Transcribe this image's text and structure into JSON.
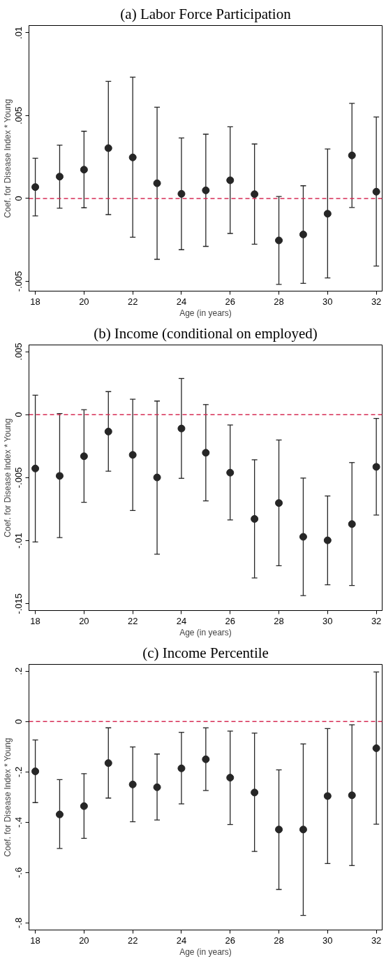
{
  "chart_data": [
    {
      "type": "scatter",
      "title": "(a) Labor Force Participation",
      "xlabel": "Age (in years)",
      "ylabel": "Coef. for Disease Index * Young",
      "color": "#262626",
      "marker": "circle",
      "grid": false,
      "x": [
        18,
        19,
        20,
        21,
        22,
        23,
        24,
        25,
        26,
        27,
        28,
        29,
        30,
        31,
        32
      ],
      "values": [
        0.00069,
        0.00132,
        0.00174,
        0.00304,
        0.00248,
        0.00092,
        0.00028,
        0.00049,
        0.0011,
        0.00026,
        -0.00253,
        -0.00217,
        -0.00092,
        0.0026,
        0.00041
      ],
      "errors": [
        [
          -0.00105,
          0.00243
        ],
        [
          -0.00059,
          0.00322
        ],
        [
          -0.00056,
          0.00406
        ],
        [
          -0.00097,
          0.00707
        ],
        [
          -0.00234,
          0.00732
        ],
        [
          -0.00367,
          0.00551
        ],
        [
          -0.00309,
          0.00365
        ],
        [
          -0.00289,
          0.00388
        ],
        [
          -0.00211,
          0.00433
        ],
        [
          -0.00276,
          0.00329
        ],
        [
          -0.00518,
          0.00012
        ],
        [
          -0.00512,
          0.00077
        ],
        [
          -0.00479,
          0.00299
        ],
        [
          -0.00054,
          0.00574
        ],
        [
          -0.00408,
          0.00492
        ]
      ],
      "xlim": [
        17.74,
        32.24
      ],
      "ylim": [
        -0.00559,
        0.01044
      ],
      "xticks": [
        18,
        20,
        22,
        24,
        26,
        28,
        30,
        32
      ],
      "yticks": [
        {
          "value": -0.005,
          "label": "-.005"
        },
        {
          "value": 0,
          "label": "0"
        },
        {
          "value": 0.005,
          "label": ".005"
        },
        {
          "value": 0.01,
          "label": ".01"
        }
      ],
      "ref_lines": [
        {
          "axis": "y",
          "value": 0,
          "color": "#d62d55",
          "line_style": "dashed"
        }
      ]
    },
    {
      "type": "scatter",
      "title": "(b) Income (conditional on employed)",
      "xlabel": "Age (in years)",
      "ylabel": "Coef. for Disease Index * Young",
      "color": "#262626",
      "marker": "circle",
      "grid": false,
      "x": [
        18,
        19,
        20,
        21,
        22,
        23,
        24,
        25,
        26,
        27,
        28,
        29,
        30,
        31,
        32
      ],
      "values": [
        -0.00427,
        -0.00486,
        -0.0033,
        -0.00134,
        -0.00319,
        -0.00498,
        -0.0011,
        -0.00302,
        -0.0046,
        -0.00827,
        -0.00701,
        -0.00969,
        -0.00997,
        -0.00868,
        -0.00414
      ],
      "errors": [
        [
          -0.0101,
          0.00155
        ],
        [
          -0.00975,
          9e-05
        ],
        [
          -0.00695,
          0.00039
        ],
        [
          -0.00449,
          0.00183
        ],
        [
          -0.0076,
          0.00123
        ],
        [
          -0.01107,
          0.00108
        ],
        [
          -0.00505,
          0.00287
        ],
        [
          -0.00684,
          0.0008
        ],
        [
          -0.00835,
          -0.00082
        ],
        [
          -0.01295,
          -0.00358
        ],
        [
          -0.01198,
          -0.00201
        ],
        [
          -0.01435,
          -0.00503
        ],
        [
          -0.01349,
          -0.00645
        ],
        [
          -0.01355,
          -0.0038
        ],
        [
          -0.00796,
          -0.0003
        ]
      ],
      "xlim": [
        17.74,
        32.24
      ],
      "ylim": [
        -0.01554,
        0.00553
      ],
      "xticks": [
        18,
        20,
        22,
        24,
        26,
        28,
        30,
        32
      ],
      "yticks": [
        {
          "value": -0.015,
          "label": "-.015"
        },
        {
          "value": -0.01,
          "label": "-.01"
        },
        {
          "value": -0.005,
          "label": "-.005"
        },
        {
          "value": 0,
          "label": "0"
        },
        {
          "value": 0.005,
          "label": ".005"
        }
      ],
      "ref_lines": [
        {
          "axis": "y",
          "value": 0,
          "color": "#d62d55",
          "line_style": "dashed"
        }
      ]
    },
    {
      "type": "scatter",
      "title": "(c) Income Percentile",
      "xlabel": "Age (in years)",
      "ylabel": "Coef. for Disease Index * Young",
      "color": "#262626",
      "marker": "circle",
      "grid": false,
      "x": [
        18,
        19,
        20,
        21,
        22,
        23,
        24,
        25,
        26,
        27,
        28,
        29,
        30,
        31,
        32
      ],
      "values": [
        -0.198,
        -0.369,
        -0.336,
        -0.165,
        -0.25,
        -0.261,
        -0.186,
        -0.15,
        -0.223,
        -0.282,
        -0.429,
        -0.429,
        -0.296,
        -0.293,
        -0.106
      ],
      "errors": [
        [
          -0.322,
          -0.073
        ],
        [
          -0.504,
          -0.231
        ],
        [
          -0.464,
          -0.207
        ],
        [
          -0.304,
          -0.025
        ],
        [
          -0.398,
          -0.101
        ],
        [
          -0.391,
          -0.129
        ],
        [
          -0.327,
          -0.043
        ],
        [
          -0.274,
          -0.025
        ],
        [
          -0.409,
          -0.038
        ],
        [
          -0.516,
          -0.046
        ],
        [
          -0.667,
          -0.192
        ],
        [
          -0.77,
          -0.089
        ],
        [
          -0.564,
          -0.028
        ],
        [
          -0.572,
          -0.013
        ],
        [
          -0.408,
          0.197
        ]
      ],
      "xlim": [
        17.74,
        32.24
      ],
      "ylim": [
        -0.828,
        0.227
      ],
      "xticks": [
        18,
        20,
        22,
        24,
        26,
        28,
        30,
        32
      ],
      "yticks": [
        {
          "value": -0.8,
          "label": "-.8"
        },
        {
          "value": -0.6,
          "label": "-.6"
        },
        {
          "value": -0.4,
          "label": "-.4"
        },
        {
          "value": -0.2,
          "label": "-.2"
        },
        {
          "value": 0,
          "label": "0"
        },
        {
          "value": 0.2,
          "label": ".2"
        }
      ],
      "ref_lines": [
        {
          "axis": "y",
          "value": 0,
          "color": "#d62d55",
          "line_style": "dashed"
        }
      ]
    }
  ]
}
